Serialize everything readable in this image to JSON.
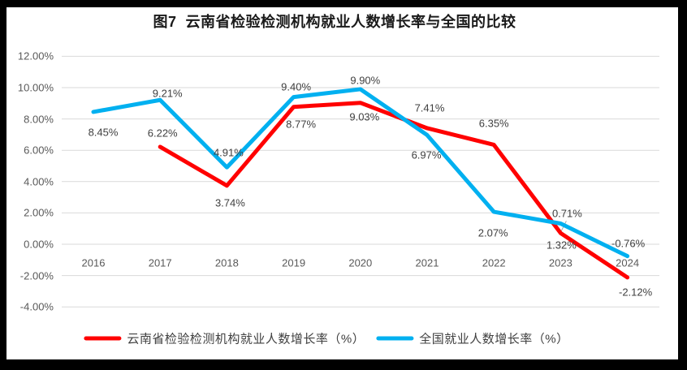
{
  "chart_data": {
    "type": "line",
    "title": "图7  云南省检验检测机构就业人数增长率与全国的比较",
    "categories": [
      "2016",
      "2017",
      "2018",
      "2019",
      "2020",
      "2021",
      "2022",
      "2023",
      "2024"
    ],
    "series": [
      {
        "name": "云南省检验检测机构就业人数增长率（%）",
        "color": "#FF0000",
        "values": [
          null,
          6.22,
          3.74,
          8.77,
          9.03,
          7.41,
          6.35,
          0.71,
          -2.12
        ],
        "point_labels": [
          "",
          "6.22%",
          "3.74%",
          "8.77%",
          "9.03%",
          "7.41%",
          "6.35%",
          "0.71%",
          "-2.12%"
        ],
        "label_offsets": [
          null,
          [
            3,
            -17
          ],
          [
            4,
            21
          ],
          [
            9,
            21
          ],
          [
            5,
            17
          ],
          [
            3,
            -25
          ],
          [
            0,
            -26
          ],
          [
            8,
            -24
          ],
          [
            10,
            18
          ]
        ],
        "leader_points": [
          7
        ]
      },
      {
        "name": "全国就业人数增长率（%）",
        "color": "#00B0F0",
        "values": [
          8.45,
          9.21,
          4.91,
          9.4,
          9.9,
          6.97,
          2.07,
          1.32,
          -0.76
        ],
        "point_labels": [
          "8.45%",
          "9.21%",
          "4.91%",
          "9.40%",
          "9.90%",
          "6.97%",
          "2.07%",
          "1.32%",
          "-0.76%"
        ],
        "label_offsets": [
          [
            12,
            25
          ],
          [
            9,
            -8
          ],
          [
            2,
            -18
          ],
          [
            3,
            -13
          ],
          [
            6,
            -11
          ],
          [
            -1,
            25
          ],
          [
            -1,
            26
          ],
          [
            1,
            26
          ],
          [
            1,
            -16
          ]
        ],
        "leader_points": []
      }
    ],
    "y_axis": {
      "tick_labels": [
        "12.00%",
        "10.00%",
        "8.00%",
        "6.00%",
        "4.00%",
        "2.00%",
        "0.00%",
        "-2.00%",
        "-4.00%"
      ],
      "tick_values": [
        12,
        10,
        8,
        6,
        4,
        2,
        0,
        -2,
        -4
      ],
      "min": -4,
      "max": 12,
      "step": 2
    },
    "grid": true,
    "legend_position": "bottom"
  },
  "colors": {
    "background_frame": "#000000",
    "canvas": "#FFFFFF",
    "gridline": "#D9D9D9",
    "axis_text": "#595959",
    "data_label_text": "#3F3F3F",
    "title_text": "#1A1A1A",
    "legend_text": "#404040",
    "leader_line": "#A6A6A6",
    "series_yunnan": "#FF0000",
    "series_national": "#00B0F0"
  }
}
